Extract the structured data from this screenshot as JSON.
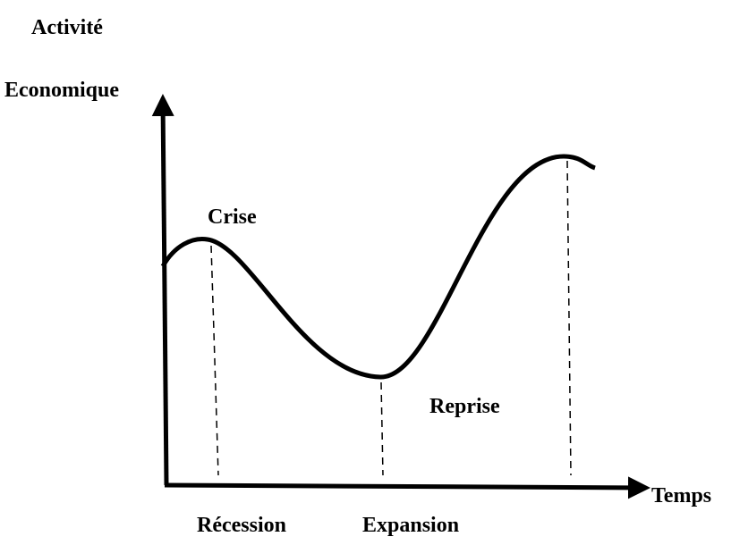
{
  "axes": {
    "y_label_lines": [
      "Activité",
      "Economique"
    ],
    "x_label": "Temps"
  },
  "labels": {
    "peak": "Crise",
    "rise": "Reprise",
    "fall": "Récession",
    "trough": "Expansion"
  }
}
